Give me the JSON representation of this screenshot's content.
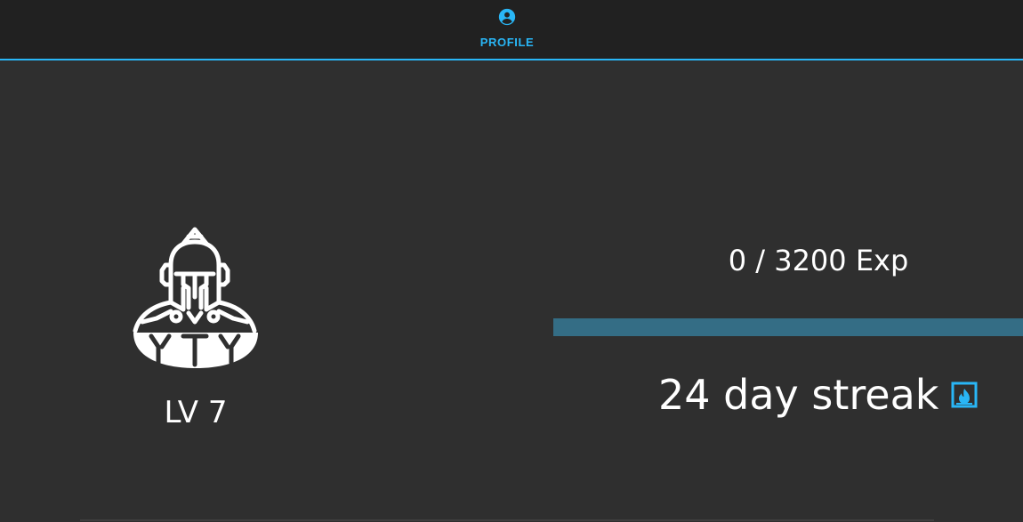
{
  "nav": {
    "tabs": [
      {
        "label": "PROFILE",
        "icon": "account-circle-icon",
        "active": true
      }
    ]
  },
  "profile": {
    "avatar_icon": "spartan-warrior-icon",
    "level_label": "LV 7",
    "exp_label": "0 / 3200 Exp",
    "exp_progress": 0,
    "streak_label": "24 day streak",
    "streak_icon": "fireplace-icon"
  },
  "colors": {
    "accent": "#29b6f6",
    "progress_track": "#346d85",
    "background": "#2f2f2f",
    "topbar": "#212121",
    "text": "#ffffff"
  }
}
